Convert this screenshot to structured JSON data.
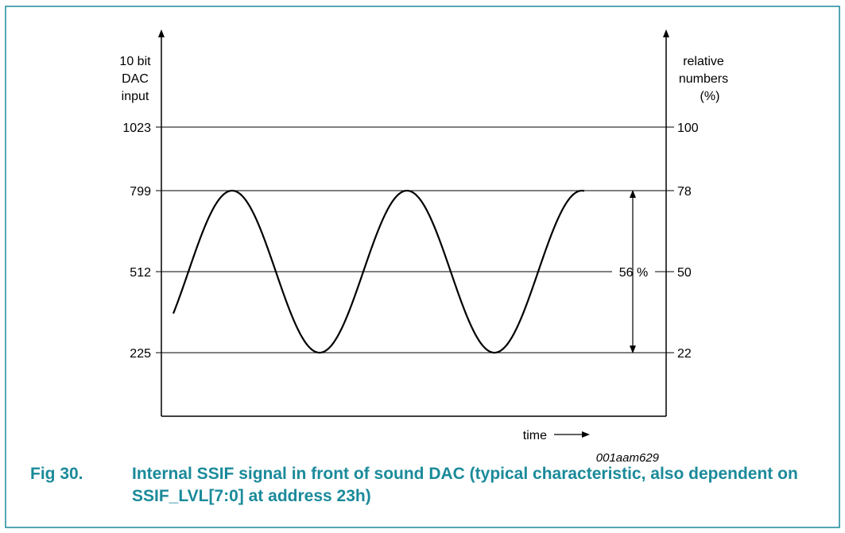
{
  "figure": {
    "left_axis_label": [
      "10 bit",
      "DAC",
      "input"
    ],
    "right_axis_label": [
      "relative",
      "numbers",
      "(%)"
    ],
    "levels": [
      {
        "dac": "1023",
        "pct": "100"
      },
      {
        "dac": "799",
        "pct": "78"
      },
      {
        "dac": "512",
        "pct": "50"
      },
      {
        "dac": "225",
        "pct": "22"
      }
    ],
    "amplitude_label": "56 %",
    "x_label": "time",
    "figure_id": "001aam629",
    "colors": {
      "frame": "#1a8a9a",
      "caption": "#1a8a9a",
      "lines": "#000000"
    }
  },
  "caption": {
    "number": "Fig 30.",
    "text": "Internal SSIF signal in front of sound DAC (typical characteristic, also dependent on SSIF_LVL[7:0] at address 23h)"
  }
}
